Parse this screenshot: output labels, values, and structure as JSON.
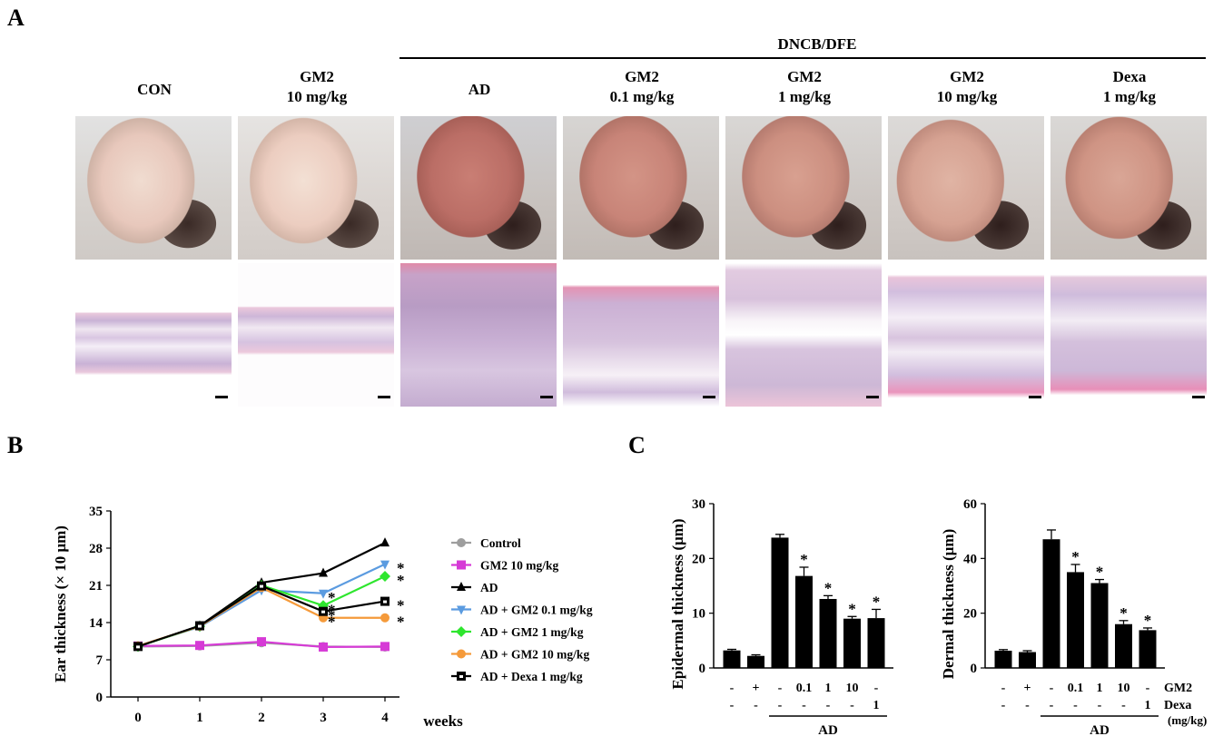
{
  "panel_a": {
    "letter": "A",
    "group_header": "DNCB/DFE",
    "columns": [
      {
        "line1": "CON",
        "line2": ""
      },
      {
        "line1": "GM2",
        "line2": "10 mg/kg"
      },
      {
        "line1": "AD",
        "line2": ""
      },
      {
        "line1": "GM2",
        "line2": "0.1 mg/kg"
      },
      {
        "line1": "GM2",
        "line2": "1 mg/kg"
      },
      {
        "line1": "GM2",
        "line2": "10 mg/kg"
      },
      {
        "line1": "Dexa",
        "line2": "1 mg/kg"
      }
    ]
  },
  "panel_b": {
    "letter": "B"
  },
  "panel_c": {
    "letter": "C"
  },
  "chart_data": [
    {
      "type": "line",
      "ylabel": "Ear thickness (× 10 μm)",
      "xlabel": "weeks",
      "x": [
        0,
        1,
        2,
        3,
        4
      ],
      "xticks": [
        "0",
        "1",
        "2",
        "3",
        "4"
      ],
      "yticks": [
        "0",
        "7",
        "14",
        "21",
        "28",
        "35"
      ],
      "ylim": [
        0,
        35
      ],
      "legend_position": "right",
      "series": [
        {
          "name": "Control",
          "color": "#9e9e9e",
          "marker": "circle",
          "values": [
            9.5,
            9.6,
            10.2,
            9.5,
            9.4
          ],
          "sig": [
            "",
            "",
            "",
            "",
            ""
          ]
        },
        {
          "name": "GM2 10 mg/kg",
          "color": "#d63ad6",
          "marker": "square",
          "values": [
            9.6,
            9.7,
            10.4,
            9.4,
            9.5
          ],
          "sig": [
            "",
            "",
            "",
            "",
            ""
          ]
        },
        {
          "name": "AD",
          "color": "#000000",
          "marker": "triangle",
          "values": [
            9.5,
            13.4,
            21.5,
            23.3,
            29.0
          ],
          "sig": [
            "",
            "",
            "",
            "",
            ""
          ]
        },
        {
          "name": "AD + GM2 0.1 mg/kg",
          "color": "#5b9be0",
          "marker": "triangle-down",
          "values": [
            9.6,
            13.2,
            20.1,
            19.5,
            25.0
          ],
          "sig": [
            "",
            "",
            "",
            "*",
            "*"
          ]
        },
        {
          "name": "AD + GM2 1 mg/kg",
          "color": "#2ee62e",
          "marker": "diamond",
          "values": [
            9.5,
            13.3,
            21.0,
            17.2,
            22.7
          ],
          "sig": [
            "",
            "",
            "",
            "*",
            "*"
          ]
        },
        {
          "name": "AD + GM2 10 mg/kg",
          "color": "#f59a3a",
          "marker": "circle",
          "values": [
            9.6,
            13.3,
            20.6,
            14.9,
            14.9
          ],
          "sig": [
            "",
            "",
            "",
            "*",
            "*"
          ]
        },
        {
          "name": "AD + Dexa 1 mg/kg",
          "color": "#000000",
          "marker": "square-open",
          "values": [
            9.5,
            13.4,
            20.9,
            16.1,
            18.0
          ],
          "sig": [
            "",
            "",
            "",
            "*",
            "*"
          ]
        }
      ]
    },
    {
      "type": "bar",
      "ylabel": "Epidermal thickness (μm)",
      "yticks": [
        "0",
        "10",
        "20",
        "30"
      ],
      "ylim": [
        0,
        30
      ],
      "values": [
        3.2,
        2.2,
        23.8,
        16.8,
        12.6,
        9.0,
        9.1
      ],
      "errors": [
        0.2,
        0.2,
        0.6,
        1.6,
        0.6,
        0.4,
        1.6
      ],
      "sig": [
        "",
        "",
        "",
        "*",
        "*",
        "*",
        "*"
      ],
      "gm2_row": [
        "-",
        "+",
        "-",
        "0.1",
        "1",
        "10",
        "-"
      ],
      "dexa_row": [
        "-",
        "-",
        "-",
        "-",
        "-",
        "-",
        "1"
      ],
      "group_label": "AD"
    },
    {
      "type": "bar",
      "ylabel": "Dermal thickness (μm)",
      "yticks": [
        "0",
        "20",
        "40",
        "60"
      ],
      "ylim": [
        0,
        60
      ],
      "values": [
        6.3,
        5.8,
        47.0,
        35.0,
        31.0,
        16.0,
        13.8
      ],
      "errors": [
        0.4,
        0.5,
        3.4,
        2.8,
        1.3,
        1.3,
        0.8
      ],
      "sig": [
        "",
        "",
        "",
        "*",
        "*",
        "*",
        "*"
      ],
      "gm2_row": [
        "-",
        "+",
        "-",
        "0.1",
        "1",
        "10",
        "-"
      ],
      "dexa_row": [
        "-",
        "-",
        "-",
        "-",
        "-",
        "-",
        "1"
      ],
      "row_labels": [
        "GM2",
        "Dexa",
        "(mg/kg)"
      ],
      "group_label": "AD"
    }
  ]
}
